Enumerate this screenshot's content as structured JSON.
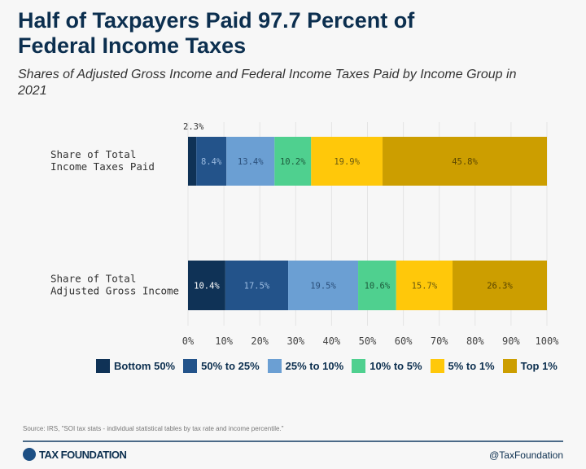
{
  "title": "Half of Taxpayers Paid 97.7 Percent of Federal Income Taxes",
  "subtitle": "Shares of Adjusted Gross Income and Federal Income Taxes Paid by Income Group in 2021",
  "chart_data": {
    "type": "bar",
    "orientation": "horizontal",
    "stacked": true,
    "categories": [
      "Share of Total Income Taxes Paid",
      "Share of Total Adjusted Gross Income"
    ],
    "series": [
      {
        "name": "Bottom 50%",
        "color": "#0f3256",
        "label_color": "#ffffff",
        "values": [
          2.3,
          10.4
        ],
        "labels": [
          "2.3%",
          "10.4%"
        ]
      },
      {
        "name": "50% to 25%",
        "color": "#23538a",
        "label_color": "#9bbbe0",
        "values": [
          8.4,
          17.5
        ],
        "labels": [
          "8.4%",
          "17.5%"
        ]
      },
      {
        "name": "25% to 10%",
        "color": "#6b9fd3",
        "label_color": "#2b4f7a",
        "values": [
          13.4,
          19.5
        ],
        "labels": [
          "13.4%",
          "19.5%"
        ]
      },
      {
        "name": "10% to 5%",
        "color": "#4fd08f",
        "label_color": "#1d5c3d",
        "values": [
          10.2,
          10.6
        ],
        "labels": [
          "10.2%",
          "10.6%"
        ]
      },
      {
        "name": "5% to 1%",
        "color": "#ffc80a",
        "label_color": "#6b5a10",
        "values": [
          19.9,
          15.7
        ],
        "labels": [
          "19.9%",
          "15.7%"
        ]
      },
      {
        "name": "Top 1%",
        "color": "#cc9e00",
        "label_color": "#5a4600",
        "values": [
          45.8,
          26.3
        ],
        "labels": [
          "45.8%",
          "26.3%"
        ]
      }
    ],
    "xlim": [
      0,
      100
    ],
    "xticks": [
      "0%",
      "10%",
      "20%",
      "30%",
      "40%",
      "50%",
      "60%",
      "70%",
      "80%",
      "90%",
      "100%"
    ],
    "grid": true,
    "legend": "bottom"
  },
  "source": "Source: IRS, \"SOI tax stats - individual statistical tables by tax rate and income percentile.\"",
  "footer": {
    "logo": "TAX FOUNDATION",
    "handle": "@TaxFoundation"
  }
}
